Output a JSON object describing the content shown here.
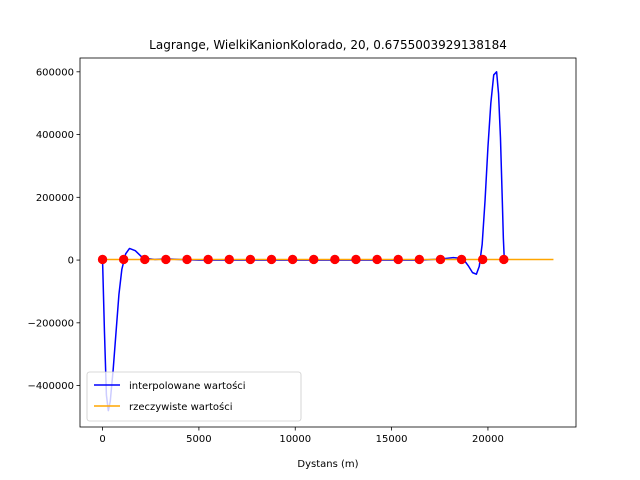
{
  "chart_data": {
    "type": "line",
    "title": "Lagrange, WielkiKanionKolorado, 20, 0.6755003929138184",
    "xlabel": "Dystans (m)",
    "ylabel": "",
    "xlim": [
      -1170,
      24570
    ],
    "ylim": [
      -532000,
      644000
    ],
    "xticks": [
      0,
      5000,
      10000,
      15000,
      20000
    ],
    "xtick_labels": [
      "0",
      "5000",
      "10000",
      "15000",
      "20000"
    ],
    "yticks": [
      -400000,
      -200000,
      0,
      200000,
      400000,
      600000
    ],
    "ytick_labels": [
      "−400000",
      "−200000",
      "0",
      "200000",
      "400000",
      "600000"
    ],
    "grid": false,
    "legend_position": "lower-left",
    "series": [
      {
        "name": "interpolowane wartości",
        "color": "#0000ff",
        "kind": "line",
        "x": [
          0,
          100,
          200,
          300,
          400,
          550,
          700,
          850,
          1000,
          1200,
          1400,
          1700,
          2000,
          2300,
          2700,
          3300,
          4000,
          5000,
          7000,
          10000,
          13000,
          15000,
          16500,
          17500,
          18200,
          18700,
          19000,
          19200,
          19400,
          19550,
          19700,
          19850,
          20000,
          20150,
          20300,
          20450,
          20550,
          20650,
          20750,
          20800,
          20850
        ],
        "y": [
          0,
          -230000,
          -430000,
          -480000,
          -450000,
          -350000,
          -230000,
          -110000,
          -30000,
          20000,
          37000,
          30000,
          12000,
          5000,
          2000,
          4000,
          2000,
          0,
          0,
          0,
          0,
          0,
          0,
          3000,
          8000,
          5000,
          -20000,
          -40000,
          -45000,
          -20000,
          50000,
          190000,
          360000,
          500000,
          590000,
          600000,
          530000,
          390000,
          180000,
          70000,
          0
        ]
      },
      {
        "name": "rzeczywiste wartości",
        "color": "#ffa500",
        "kind": "line",
        "x": [
          0,
          23400
        ],
        "y": [
          2000,
          2000
        ]
      },
      {
        "name": "",
        "color": "#ff0000",
        "kind": "markers",
        "x": [
          0,
          1096,
          2192,
          3288,
          4384,
          5480,
          6576,
          7672,
          8768,
          9864,
          10960,
          12056,
          13152,
          14248,
          15344,
          16440,
          17536,
          18632,
          19728,
          20824
        ],
        "y": [
          2000,
          2000,
          2000,
          2000,
          2000,
          2000,
          2000,
          2000,
          2000,
          2000,
          2000,
          2000,
          2000,
          2000,
          2000,
          2000,
          2000,
          2000,
          2000,
          2000
        ]
      }
    ]
  }
}
